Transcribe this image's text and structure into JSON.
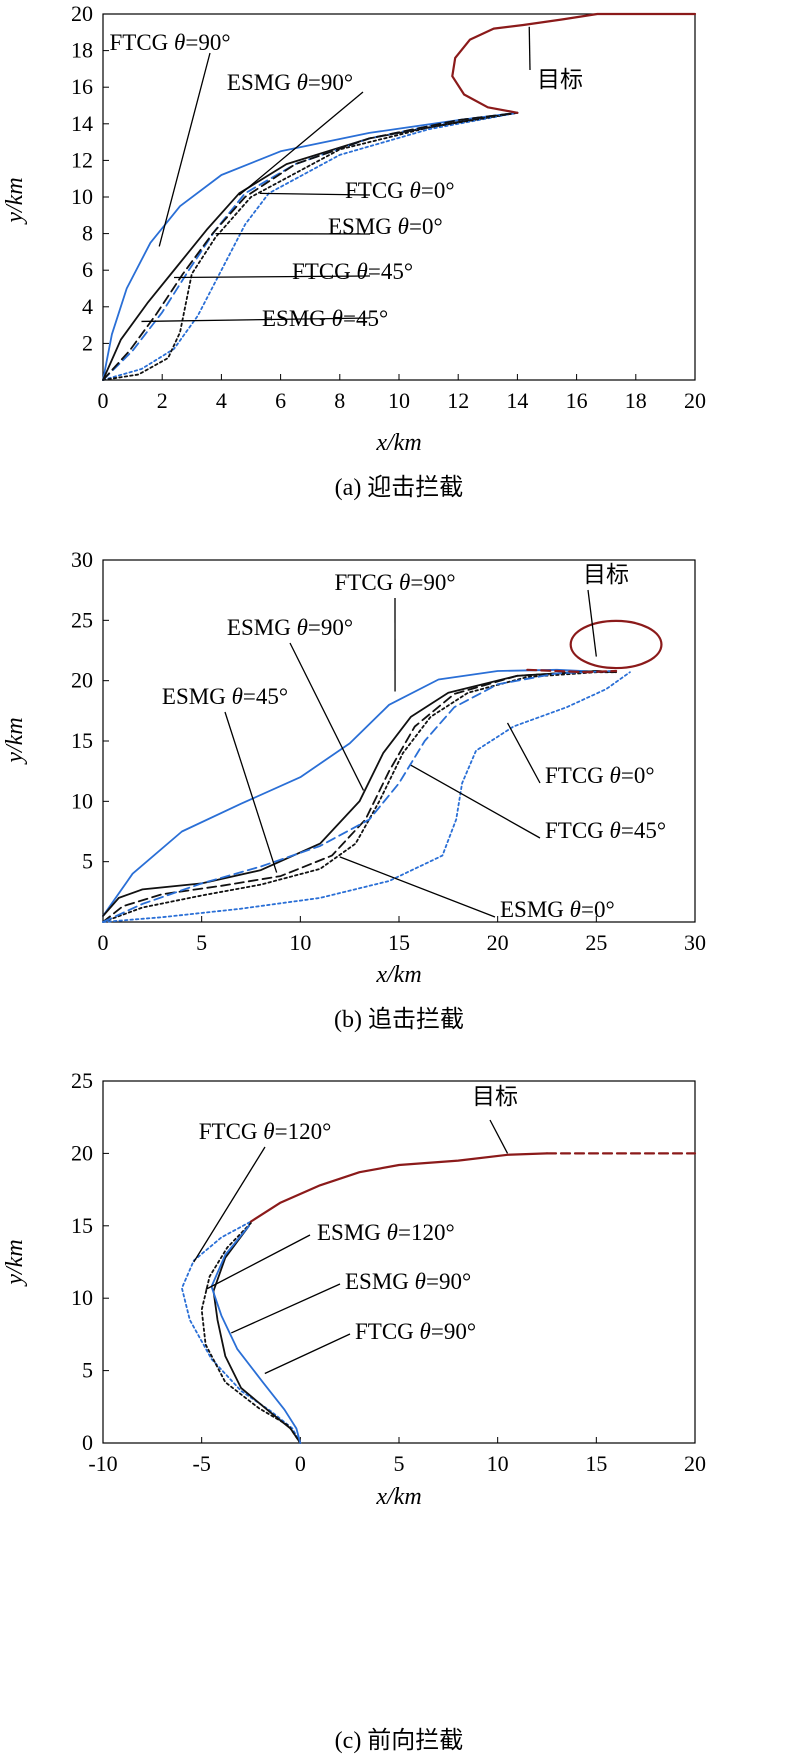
{
  "chart_data": [
    {
      "type": "line",
      "caption": "(a) 迎击拦截",
      "xlabel": "x/km",
      "ylabel": "y/km",
      "xlim": [
        0,
        20
      ],
      "ylim": [
        0,
        20
      ],
      "xticks": [
        0,
        2,
        4,
        6,
        8,
        10,
        12,
        14,
        16,
        18,
        20
      ],
      "yticks": [
        2,
        4,
        6,
        8,
        10,
        12,
        14,
        16,
        18,
        20
      ],
      "target_label": "目标",
      "series": [
        {
          "name": "FTCG θ=90°",
          "color": "#2a6fd6",
          "dash": "solid",
          "points": [
            [
              0,
              0
            ],
            [
              0.3,
              2.5
            ],
            [
              0.8,
              5
            ],
            [
              1.6,
              7.5
            ],
            [
              2.6,
              9.5
            ],
            [
              4,
              11.2
            ],
            [
              6,
              12.5
            ],
            [
              9,
              13.5
            ],
            [
              12,
              14.2
            ],
            [
              14,
              14.6
            ]
          ]
        },
        {
          "name": "ESMG θ=90°",
          "color": "#111111",
          "dash": "solid",
          "points": [
            [
              0,
              0
            ],
            [
              0.6,
              2.2
            ],
            [
              1.5,
              4.2
            ],
            [
              2.5,
              6.2
            ],
            [
              3.5,
              8.2
            ],
            [
              4.6,
              10.2
            ],
            [
              6.2,
              11.8
            ],
            [
              9,
              13.2
            ],
            [
              12,
              14.1
            ],
            [
              14,
              14.6
            ]
          ]
        },
        {
          "name": "FTCG θ=0°",
          "color": "#2a6fd6",
          "dash": "dotted",
          "points": [
            [
              0,
              0
            ],
            [
              1.3,
              0.6
            ],
            [
              2.4,
              1.7
            ],
            [
              3.2,
              3.5
            ],
            [
              4,
              6
            ],
            [
              4.8,
              8.5
            ],
            [
              5.6,
              10.2
            ],
            [
              8,
              12.3
            ],
            [
              11,
              13.7
            ],
            [
              14,
              14.6
            ]
          ]
        },
        {
          "name": "ESMG θ=0°",
          "color": "#111111",
          "dash": "dotted",
          "points": [
            [
              0,
              0
            ],
            [
              1.2,
              0.3
            ],
            [
              2.2,
              1.2
            ],
            [
              2.6,
              2.6
            ],
            [
              2.8,
              4.2
            ],
            [
              3,
              5.8
            ],
            [
              3.8,
              7.8
            ],
            [
              5,
              10
            ],
            [
              8,
              12.6
            ],
            [
              11,
              13.8
            ],
            [
              14,
              14.6
            ]
          ]
        },
        {
          "name": "FTCG θ=45°",
          "color": "#2a6fd6",
          "dash": "dashed",
          "points": [
            [
              0,
              0
            ],
            [
              1,
              1.6
            ],
            [
              2,
              3.7
            ],
            [
              2.9,
              6
            ],
            [
              3.8,
              8.2
            ],
            [
              4.8,
              10.2
            ],
            [
              6.5,
              11.8
            ],
            [
              9,
              13.2
            ],
            [
              12,
              14.2
            ],
            [
              14,
              14.6
            ]
          ]
        },
        {
          "name": "ESMG θ=45°",
          "color": "#111111",
          "dash": "dashed",
          "points": [
            [
              0,
              0
            ],
            [
              0.9,
              1.6
            ],
            [
              1.8,
              3.6
            ],
            [
              2.7,
              5.8
            ],
            [
              3.7,
              8
            ],
            [
              4.8,
              10
            ],
            [
              6.5,
              11.8
            ],
            [
              9,
              13.2
            ],
            [
              12,
              14.2
            ],
            [
              14,
              14.6
            ]
          ]
        },
        {
          "name": "目标",
          "color": "#8b1a1a",
          "dash": "solid",
          "points": [
            [
              14,
              14.6
            ],
            [
              13,
              14.9
            ],
            [
              12.2,
              15.6
            ],
            [
              11.8,
              16.6
            ],
            [
              11.9,
              17.6
            ],
            [
              12.4,
              18.6
            ],
            [
              13.2,
              19.2
            ],
            [
              14.2,
              19.4
            ],
            [
              15.5,
              19.7
            ],
            [
              16.7,
              20
            ],
            [
              18,
              20
            ],
            [
              20,
              20
            ]
          ]
        }
      ],
      "labels": [
        {
          "text": "FTCG θ=90°"
        },
        {
          "text": "ESMG θ=90°"
        },
        {
          "text": "FTCG θ=0°"
        },
        {
          "text": "ESMG θ=0°"
        },
        {
          "text": "FTCG θ=45°"
        },
        {
          "text": "ESMG θ=45°"
        }
      ]
    },
    {
      "type": "line",
      "caption": "(b) 追击拦截",
      "xlabel": "x/km",
      "ylabel": "y/km",
      "xlim": [
        0,
        30
      ],
      "ylim": [
        0,
        30
      ],
      "xticks": [
        0,
        5,
        10,
        15,
        20,
        25,
        30
      ],
      "yticks": [
        5,
        10,
        15,
        20,
        25,
        30
      ],
      "target_label": "目标",
      "series": [
        {
          "name": "FTCG θ=90°",
          "color": "#2a6fd6",
          "dash": "solid",
          "points": [
            [
              0,
              0.5
            ],
            [
              1.5,
              4
            ],
            [
              4,
              7.5
            ],
            [
              7,
              9.8
            ],
            [
              10,
              12
            ],
            [
              12.5,
              14.8
            ],
            [
              14.5,
              18
            ],
            [
              17,
              20.1
            ],
            [
              20,
              20.8
            ],
            [
              23,
              20.9
            ],
            [
              25.5,
              20.7
            ]
          ]
        },
        {
          "name": "ESMG θ=90°",
          "color": "#111111",
          "dash": "solid",
          "points": [
            [
              0,
              0.5
            ],
            [
              0.8,
              2
            ],
            [
              2,
              2.7
            ],
            [
              5,
              3.2
            ],
            [
              8,
              4.3
            ],
            [
              11,
              6.5
            ],
            [
              13,
              10
            ],
            [
              14.2,
              14
            ],
            [
              15.6,
              17
            ],
            [
              17.5,
              19
            ],
            [
              21,
              20.4
            ],
            [
              25,
              20.8
            ],
            [
              26,
              20.7
            ]
          ]
        },
        {
          "name": "ESMG θ=45°",
          "color": "#111111",
          "dash": "dashed",
          "points": [
            [
              0,
              0
            ],
            [
              1,
              1.3
            ],
            [
              3,
              2.3
            ],
            [
              6,
              3
            ],
            [
              9,
              3.8
            ],
            [
              11.6,
              5.5
            ],
            [
              13.3,
              8.5
            ],
            [
              14.5,
              12.5
            ],
            [
              15.8,
              16.2
            ],
            [
              17.8,
              18.9
            ],
            [
              21,
              20.4
            ],
            [
              25,
              20.8
            ],
            [
              26,
              20.7
            ]
          ]
        },
        {
          "name": "ESMG θ=0°",
          "color": "#111111",
          "dash": "dotted",
          "points": [
            [
              0,
              0
            ],
            [
              2,
              1.2
            ],
            [
              5,
              2.2
            ],
            [
              8,
              3.1
            ],
            [
              11,
              4.4
            ],
            [
              12.8,
              6.5
            ],
            [
              14,
              10
            ],
            [
              15.2,
              14
            ],
            [
              16.6,
              17
            ],
            [
              18.5,
              19
            ],
            [
              21.5,
              20.3
            ],
            [
              25,
              20.7
            ],
            [
              26,
              20.7
            ]
          ]
        },
        {
          "name": "FTCG θ=45°",
          "color": "#2a6fd6",
          "dash": "dashed",
          "points": [
            [
              0,
              0
            ],
            [
              2,
              1.5
            ],
            [
              5,
              3.2
            ],
            [
              8,
              4.6
            ],
            [
              11,
              6.3
            ],
            [
              13.5,
              8.5
            ],
            [
              15,
              11.5
            ],
            [
              16.3,
              15
            ],
            [
              17.8,
              17.8
            ],
            [
              20,
              19.7
            ],
            [
              23,
              20.6
            ],
            [
              25.8,
              20.8
            ]
          ]
        },
        {
          "name": "FTCG θ=0°",
          "color": "#2a6fd6",
          "dash": "dotted",
          "points": [
            [
              0,
              0
            ],
            [
              3,
              0.4
            ],
            [
              7,
              1.1
            ],
            [
              11,
              2
            ],
            [
              14.5,
              3.4
            ],
            [
              17.2,
              5.5
            ],
            [
              17.9,
              8.5
            ],
            [
              18.2,
              11.5
            ],
            [
              18.9,
              14.2
            ],
            [
              20.8,
              16.2
            ],
            [
              23.5,
              17.8
            ],
            [
              25.5,
              19.3
            ],
            [
              26.7,
              20.7
            ]
          ]
        },
        {
          "name": "目标",
          "color": "#8b1a1a",
          "dash": "dashed",
          "points": [
            [
              21.5,
              20.9
            ],
            [
              23,
              20.8
            ],
            [
              24.5,
              20.7
            ],
            [
              26,
              20.8
            ]
          ]
        }
      ],
      "target_ellipse": {
        "cx": 26,
        "cy": 23,
        "rx": 2.3,
        "ry": 2.3
      },
      "labels": [
        {
          "text": "FTCG θ=90°"
        },
        {
          "text": "ESMG θ=90°"
        },
        {
          "text": "ESMG θ=45°"
        },
        {
          "text": "FTCG θ=0°"
        },
        {
          "text": "FTCG θ=45°"
        },
        {
          "text": "ESMG θ=0°"
        }
      ]
    },
    {
      "type": "line",
      "caption": "(c) 前向拦截",
      "xlabel": "x/km",
      "ylabel": "y/km",
      "xlim": [
        -10,
        20
      ],
      "ylim": [
        0,
        25
      ],
      "xticks": [
        -10,
        -5,
        0,
        5,
        10,
        15,
        20
      ],
      "yticks": [
        0,
        5,
        10,
        15,
        20,
        25
      ],
      "target_label": "目标",
      "series": [
        {
          "name": "FTCG θ=120°",
          "color": "#2a6fd6",
          "dash": "dotted",
          "points": [
            [
              0,
              0
            ],
            [
              -0.4,
              1
            ],
            [
              -1.5,
              2.2
            ],
            [
              -3,
              3.6
            ],
            [
              -4.5,
              5.8
            ],
            [
              -5.6,
              8.5
            ],
            [
              -6,
              10.7
            ],
            [
              -5.4,
              12.6
            ],
            [
              -4,
              14.2
            ],
            [
              -2.5,
              15.3
            ]
          ]
        },
        {
          "name": "ESMG θ=120°",
          "color": "#111111",
          "dash": "dotted",
          "points": [
            [
              0,
              0
            ],
            [
              -0.6,
              1.2
            ],
            [
              -2.1,
              2.4
            ],
            [
              -3.8,
              4.2
            ],
            [
              -4.8,
              6.8
            ],
            [
              -5,
              9.2
            ],
            [
              -4.6,
              11.5
            ],
            [
              -3.7,
              13.5
            ],
            [
              -2.5,
              15.2
            ]
          ]
        },
        {
          "name": "ESMG θ=90°",
          "color": "#111111",
          "dash": "solid",
          "points": [
            [
              0,
              0
            ],
            [
              -0.5,
              1
            ],
            [
              -1.6,
              2.2
            ],
            [
              -3,
              3.8
            ],
            [
              -3.8,
              6
            ],
            [
              -4.2,
              8.5
            ],
            [
              -4.4,
              10.5
            ],
            [
              -3.8,
              12.8
            ],
            [
              -2.6,
              15
            ]
          ]
        },
        {
          "name": "FTCG θ=90°",
          "color": "#2a6fd6",
          "dash": "solid",
          "points": [
            [
              0,
              0
            ],
            [
              -0.2,
              1
            ],
            [
              -0.8,
              2.3
            ],
            [
              -1.9,
              4.2
            ],
            [
              -3.2,
              6.5
            ],
            [
              -4,
              8.8
            ],
            [
              -4.5,
              10.8
            ],
            [
              -3.8,
              13
            ],
            [
              -2.6,
              15
            ]
          ]
        },
        {
          "name": "目标",
          "color": "#8b1a1a",
          "dash": "solid",
          "points": [
            [
              -2.5,
              15.3
            ],
            [
              -1,
              16.6
            ],
            [
              1,
              17.8
            ],
            [
              3,
              18.7
            ],
            [
              5,
              19.2
            ],
            [
              8,
              19.5
            ],
            [
              10.5,
              19.9
            ],
            [
              12.5,
              20
            ]
          ]
        },
        {
          "name": "目标-trail",
          "color": "#8b1a1a",
          "dash": "dashed",
          "points": [
            [
              12.5,
              20
            ],
            [
              16,
              20
            ],
            [
              20,
              20
            ]
          ]
        }
      ],
      "labels": [
        {
          "text": "FTCG θ=120°"
        },
        {
          "text": "ESMG θ=120°"
        },
        {
          "text": "ESMG θ=90°"
        },
        {
          "text": "FTCG θ=90°"
        }
      ]
    }
  ]
}
